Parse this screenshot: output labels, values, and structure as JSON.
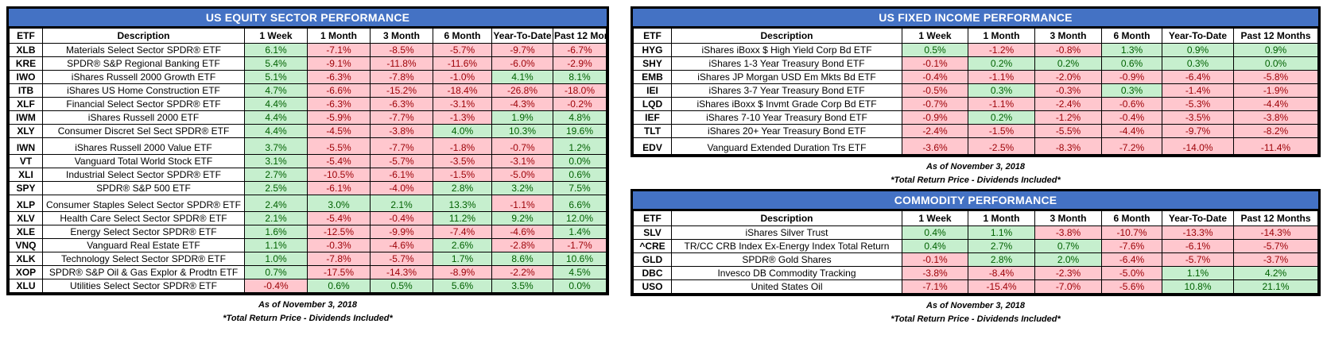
{
  "colors": {
    "title_bg": "#4472C4",
    "title_text": "#FFFFFF",
    "positive_bg": "#C6EFCE",
    "positive_text": "#006100",
    "negative_bg": "#FFC7CE",
    "negative_text": "#9C0006",
    "border": "#000000"
  },
  "columns": [
    "ETF",
    "Description",
    "1 Week",
    "1 Month",
    "3 Month",
    "6 Month",
    "Year-To-Date",
    "Past 12 Months"
  ],
  "tables": [
    {
      "title": "US EQUITY SECTOR PERFORMANCE",
      "as_of": "As of November 3, 2018",
      "note": "*Total Return Price - Dividends Included*",
      "rows": [
        {
          "etf": "XLB",
          "description": "Materials Select Sector SPDR® ETF",
          "values": [
            "6.1%",
            "-7.1%",
            "-8.5%",
            "-5.7%",
            "-9.7%",
            "-6.7%"
          ]
        },
        {
          "etf": "KRE",
          "description": "SPDR® S&P Regional Banking ETF",
          "values": [
            "5.4%",
            "-9.1%",
            "-11.8%",
            "-11.6%",
            "-6.0%",
            "-2.9%"
          ]
        },
        {
          "etf": "IWO",
          "description": "iShares Russell 2000 Growth ETF",
          "values": [
            "5.1%",
            "-6.3%",
            "-7.8%",
            "-1.0%",
            "4.1%",
            "8.1%"
          ]
        },
        {
          "etf": "ITB",
          "description": "iShares US Home Construction ETF",
          "values": [
            "4.7%",
            "-6.6%",
            "-15.2%",
            "-18.4%",
            "-26.8%",
            "-18.0%"
          ]
        },
        {
          "etf": "XLF",
          "description": "Financial Select Sector SPDR® ETF",
          "values": [
            "4.4%",
            "-6.3%",
            "-6.3%",
            "-3.1%",
            "-4.3%",
            "-0.2%"
          ]
        },
        {
          "etf": "IWM",
          "description": "iShares Russell 2000 ETF",
          "values": [
            "4.4%",
            "-5.9%",
            "-7.7%",
            "-1.3%",
            "1.9%",
            "4.8%"
          ]
        },
        {
          "etf": "XLY",
          "description": "Consumer Discret Sel Sect SPDR® ETF",
          "values": [
            "4.4%",
            "-4.5%",
            "-3.8%",
            "4.0%",
            "10.3%",
            "19.6%"
          ]
        },
        {
          "etf": "IWN",
          "description": "iShares Russell 2000 Value ETF",
          "tall": true,
          "values": [
            "3.7%",
            "-5.5%",
            "-7.7%",
            "-1.8%",
            "-0.7%",
            "1.2%"
          ]
        },
        {
          "etf": "VT",
          "description": "Vanguard Total World Stock ETF",
          "values": [
            "3.1%",
            "-5.4%",
            "-5.7%",
            "-3.5%",
            "-3.1%",
            "0.0%"
          ]
        },
        {
          "etf": "XLI",
          "description": "Industrial Select Sector SPDR® ETF",
          "values": [
            "2.7%",
            "-10.5%",
            "-6.1%",
            "-1.5%",
            "-5.0%",
            "0.6%"
          ]
        },
        {
          "etf": "SPY",
          "description": "SPDR® S&P 500 ETF",
          "values": [
            "2.5%",
            "-6.1%",
            "-4.0%",
            "2.8%",
            "3.2%",
            "7.5%"
          ]
        },
        {
          "etf": "XLP",
          "description": "Consumer Staples Select Sector SPDR® ETF",
          "tall": true,
          "values": [
            "2.4%",
            "3.0%",
            "2.1%",
            "13.3%",
            "-1.1%",
            "6.6%"
          ]
        },
        {
          "etf": "XLV",
          "description": "Health Care Select Sector SPDR® ETF",
          "values": [
            "2.1%",
            "-5.4%",
            "-0.4%",
            "11.2%",
            "9.2%",
            "12.0%"
          ]
        },
        {
          "etf": "XLE",
          "description": "Energy Select Sector SPDR® ETF",
          "values": [
            "1.6%",
            "-12.5%",
            "-9.9%",
            "-7.4%",
            "-4.6%",
            "1.4%"
          ]
        },
        {
          "etf": "VNQ",
          "description": "Vanguard Real Estate ETF",
          "values": [
            "1.1%",
            "-0.3%",
            "-4.6%",
            "2.6%",
            "-2.8%",
            "-1.7%"
          ]
        },
        {
          "etf": "XLK",
          "description": "Technology Select Sector SPDR® ETF",
          "values": [
            "1.0%",
            "-7.8%",
            "-5.7%",
            "1.7%",
            "8.6%",
            "10.6%"
          ]
        },
        {
          "etf": "XOP",
          "description": "SPDR® S&P Oil & Gas Explor & Prodtn ETF",
          "values": [
            "0.7%",
            "-17.5%",
            "-14.3%",
            "-8.9%",
            "-2.2%",
            "4.5%"
          ]
        },
        {
          "etf": "XLU",
          "description": "Utilities Select Sector SPDR® ETF",
          "values": [
            "-0.4%",
            "0.6%",
            "0.5%",
            "5.6%",
            "3.5%",
            "0.0%"
          ]
        }
      ]
    },
    {
      "title": "US FIXED INCOME PERFORMANCE",
      "as_of": "As of November 3, 2018",
      "note": "*Total Return Price - Dividends Included*",
      "rows": [
        {
          "etf": "HYG",
          "description": "iShares iBoxx $ High Yield Corp Bd ETF",
          "values": [
            "0.5%",
            "-1.2%",
            "-0.8%",
            "1.3%",
            "0.9%",
            "0.9%"
          ]
        },
        {
          "etf": "SHY",
          "description": "iShares 1-3 Year Treasury Bond ETF",
          "values": [
            "-0.1%",
            "0.2%",
            "0.2%",
            "0.6%",
            "0.3%",
            "0.0%"
          ]
        },
        {
          "etf": "EMB",
          "description": "iShares JP Morgan USD Em Mkts Bd ETF",
          "values": [
            "-0.4%",
            "-1.1%",
            "-2.0%",
            "-0.9%",
            "-6.4%",
            "-5.8%"
          ]
        },
        {
          "etf": "IEI",
          "description": "iShares 3-7 Year Treasury Bond ETF",
          "values": [
            "-0.5%",
            "0.3%",
            "-0.3%",
            "0.3%",
            "-1.4%",
            "-1.9%"
          ]
        },
        {
          "etf": "LQD",
          "description": "iShares iBoxx $ Invmt Grade Corp Bd ETF",
          "values": [
            "-0.7%",
            "-1.1%",
            "-2.4%",
            "-0.6%",
            "-5.3%",
            "-4.4%"
          ]
        },
        {
          "etf": "IEF",
          "description": "iShares 7-10 Year Treasury Bond ETF",
          "values": [
            "-0.9%",
            "0.2%",
            "-1.2%",
            "-0.4%",
            "-3.5%",
            "-3.8%"
          ]
        },
        {
          "etf": "TLT",
          "description": "iShares 20+ Year Treasury Bond ETF",
          "values": [
            "-2.4%",
            "-1.5%",
            "-5.5%",
            "-4.4%",
            "-9.7%",
            "-8.2%"
          ]
        },
        {
          "etf": "EDV",
          "description": "Vanguard Extended Duration Trs ETF",
          "tall": true,
          "values": [
            "-3.6%",
            "-2.5%",
            "-8.3%",
            "-7.2%",
            "-14.0%",
            "-11.4%"
          ]
        }
      ]
    },
    {
      "title": "COMMODITY PERFORMANCE",
      "as_of": "As of November 3, 2018",
      "note": "*Total Return Price - Dividends Included*",
      "rows": [
        {
          "etf": "SLV",
          "description": "iShares Silver Trust",
          "values": [
            "0.4%",
            "1.1%",
            "-3.8%",
            "-10.7%",
            "-13.3%",
            "-14.3%"
          ]
        },
        {
          "etf": "^CRE",
          "description": "TR/CC CRB Index Ex-Energy Index Total Return",
          "values": [
            "0.4%",
            "2.7%",
            "0.7%",
            "-7.6%",
            "-6.1%",
            "-5.7%"
          ]
        },
        {
          "etf": "GLD",
          "description": "SPDR® Gold Shares",
          "values": [
            "-0.1%",
            "2.8%",
            "2.0%",
            "-6.4%",
            "-5.7%",
            "-3.7%"
          ]
        },
        {
          "etf": "DBC",
          "description": "Invesco DB Commodity Tracking",
          "values": [
            "-3.8%",
            "-8.4%",
            "-2.3%",
            "-5.0%",
            "1.1%",
            "4.2%"
          ]
        },
        {
          "etf": "USO",
          "description": "United States Oil",
          "values": [
            "-7.1%",
            "-15.4%",
            "-7.0%",
            "-5.6%",
            "10.8%",
            "21.1%"
          ]
        }
      ]
    }
  ]
}
